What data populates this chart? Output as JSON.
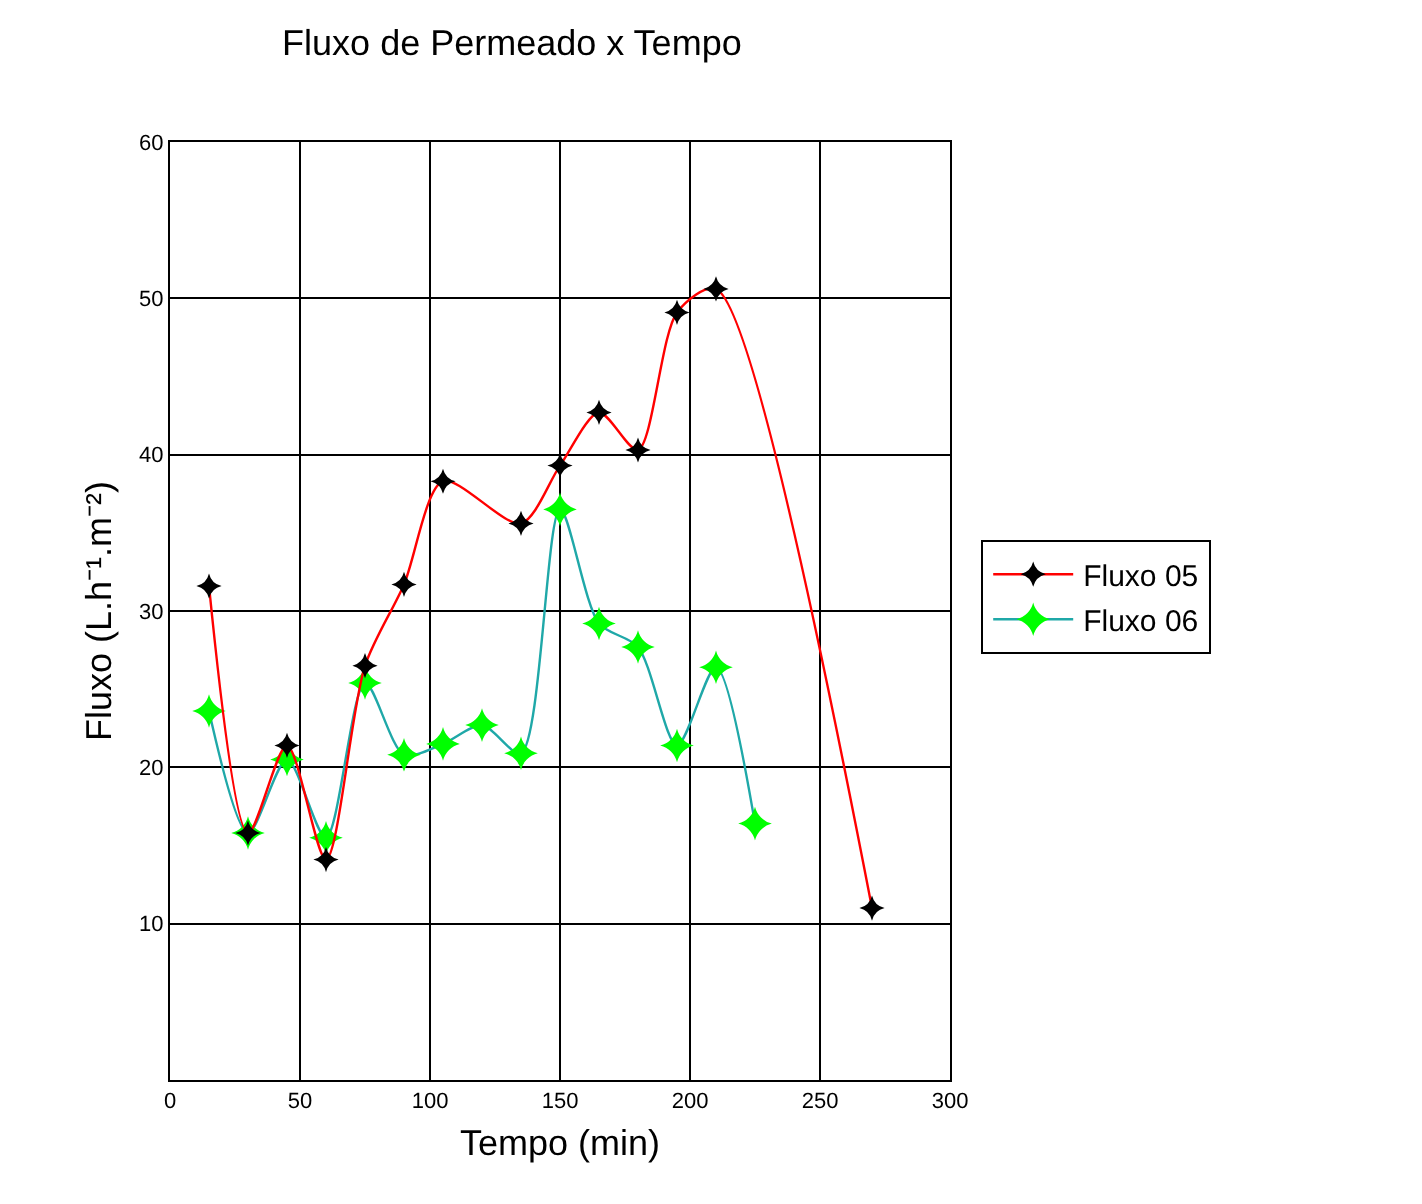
{
  "chart_data": {
    "type": "line",
    "title": "Fluxo de Permeado x Tempo",
    "xlabel": "Tempo (min)",
    "ylabel": "Fluxo (L.h⁻¹.m⁻²)",
    "xlim": [
      0,
      300
    ],
    "xticks": [
      0,
      50,
      100,
      150,
      200,
      250,
      300
    ],
    "ylim": [
      0,
      60
    ],
    "yticks": [
      10,
      20,
      30,
      40,
      50,
      60
    ],
    "grid": true,
    "legend": "right",
    "marker": "star",
    "series": [
      {
        "name": "Fluxo 05",
        "color": "#ff0000",
        "x": [
          15,
          30,
          45,
          60,
          75,
          90,
          105,
          135,
          150,
          165,
          180,
          195,
          210,
          270
        ],
        "values": [
          31.6,
          15.8,
          21.4,
          14.1,
          26.5,
          31.7,
          38.3,
          35.6,
          39.3,
          42.7,
          40.3,
          49.1,
          50.6,
          11.0
        ]
      },
      {
        "name": "Fluxo 06",
        "color": "#1fa8a8",
        "x": [
          15,
          30,
          45,
          60,
          75,
          90,
          105,
          120,
          135,
          150,
          165,
          180,
          195,
          210,
          225
        ],
        "values": [
          23.6,
          15.8,
          20.5,
          15.5,
          25.4,
          20.8,
          21.5,
          22.7,
          20.9,
          36.5,
          29.2,
          27.7,
          21.4,
          26.4,
          16.4
        ]
      }
    ]
  }
}
